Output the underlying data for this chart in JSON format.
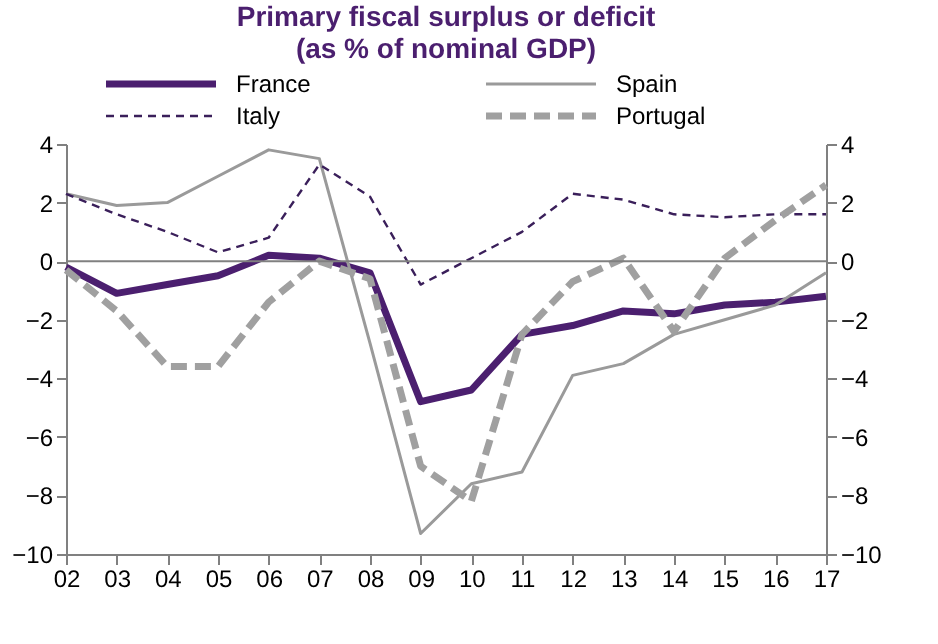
{
  "chart_data": {
    "type": "line",
    "title": [
      "Primary fiscal surplus or deficit",
      "(as % of nominal GDP)"
    ],
    "categories": [
      "02",
      "03",
      "04",
      "05",
      "06",
      "07",
      "08",
      "09",
      "10",
      "11",
      "12",
      "13",
      "14",
      "15",
      "16",
      "17"
    ],
    "series": [
      {
        "name": "France",
        "color": "#4b1f6f",
        "line_style": "solid",
        "values": [
          -0.2,
          -1.1,
          -0.8,
          -0.5,
          0.2,
          0.1,
          -0.4,
          -4.8,
          -4.4,
          -2.5,
          -2.2,
          -1.7,
          -1.8,
          -1.5,
          -1.4,
          -1.2
        ]
      },
      {
        "name": "Spain",
        "color": "#9a9a9a",
        "line_style": "solid",
        "values": [
          2.3,
          1.9,
          2.0,
          2.9,
          3.8,
          3.5,
          -2.8,
          -9.3,
          -7.6,
          -7.2,
          -3.9,
          -3.5,
          -2.5,
          -2.0,
          -1.5,
          -0.4
        ]
      },
      {
        "name": "Italy",
        "color": "#3a1f5a",
        "line_style": "dashed",
        "values": [
          2.3,
          1.6,
          1.0,
          0.3,
          0.8,
          3.3,
          2.2,
          -0.8,
          0.1,
          1.0,
          2.3,
          2.1,
          1.6,
          1.5,
          1.6,
          1.6
        ]
      },
      {
        "name": "Portugal",
        "color": "#a0a0a0",
        "line_style": "dashed",
        "values": [
          -0.3,
          -1.7,
          -3.6,
          -3.6,
          -1.4,
          0.0,
          -0.6,
          -7.0,
          -8.2,
          -2.5,
          -0.7,
          0.1,
          -2.4,
          0.1,
          1.4,
          2.6
        ]
      }
    ],
    "ylim": [
      -10,
      4
    ],
    "yticks": [
      -10,
      -8,
      -6,
      -4,
      -2,
      0,
      2,
      4
    ],
    "y2lim": [
      -10,
      4
    ],
    "y2ticks": [
      -10,
      -8,
      -6,
      -4,
      -2,
      0,
      2,
      4
    ],
    "ref_lines": [
      {
        "axis": "y",
        "value": 0,
        "color": "#808080"
      }
    ],
    "grid": false,
    "legend": "top",
    "marker": "none"
  }
}
